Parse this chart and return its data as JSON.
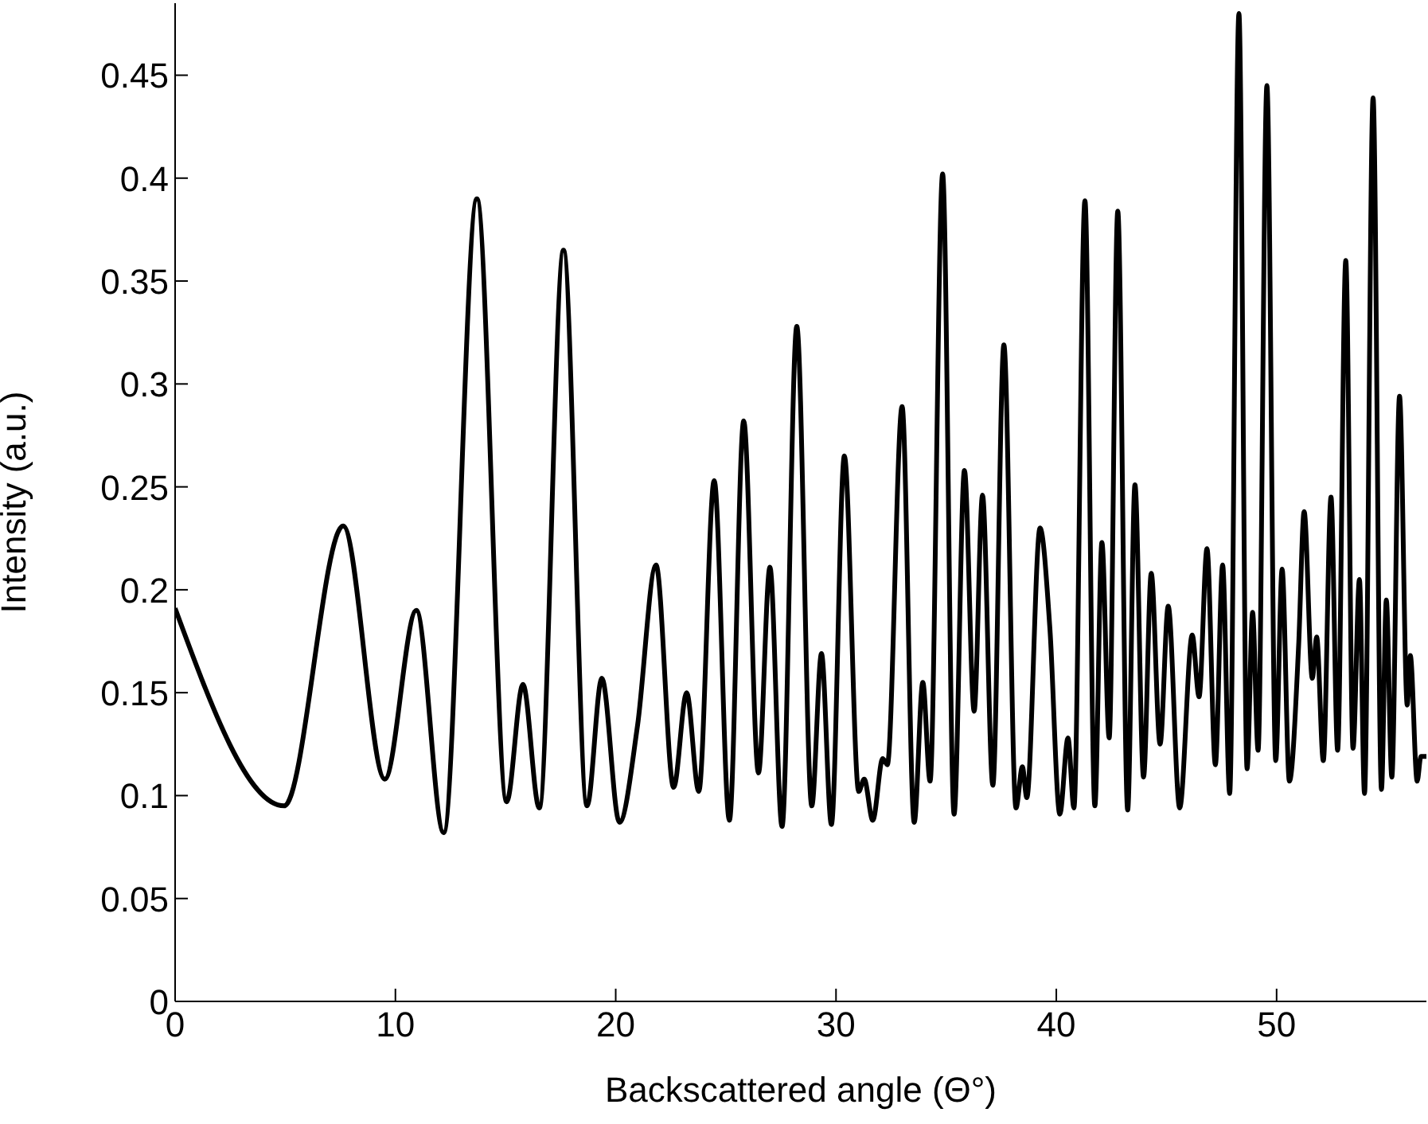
{
  "chart_data": {
    "type": "line",
    "xlabel": "Backscattered angle (Θ°)",
    "ylabel": "Intensity (a.u.)",
    "xlim": [
      0,
      56.8
    ],
    "ylim": [
      0,
      0.485
    ],
    "xticks": [
      0,
      10,
      20,
      30,
      40,
      50
    ],
    "yticks": [
      0,
      0.05,
      0.1,
      0.15,
      0.2,
      0.25,
      0.3,
      0.35,
      0.4,
      0.45
    ],
    "grid": false,
    "marker": "none",
    "line_style": "solid",
    "series": [
      {
        "color": "#000000",
        "x": [
          0,
          4.95,
          7.63,
          9.52,
          10.95,
          12.19,
          13.7,
          15.05,
          15.79,
          16.53,
          17.63,
          18.7,
          19.37,
          20.17,
          20.99,
          21.83,
          22.63,
          23.22,
          23.77,
          24.47,
          25.16,
          25.81,
          26.48,
          27.0,
          27.55,
          28.22,
          28.9,
          29.34,
          29.79,
          30.38,
          31.03,
          31.28,
          31.67,
          32.12,
          32.33,
          33.0,
          33.55,
          33.94,
          34.27,
          34.84,
          35.36,
          35.83,
          36.27,
          36.65,
          37.12,
          37.62,
          38.17,
          38.46,
          38.66,
          39.26,
          39.71,
          40.16,
          40.53,
          40.8,
          41.3,
          41.75,
          42.07,
          42.4,
          42.79,
          43.24,
          43.57,
          43.96,
          44.31,
          44.71,
          45.08,
          45.6,
          46.17,
          46.48,
          46.84,
          47.22,
          47.55,
          47.87,
          48.29,
          48.66,
          48.91,
          49.16,
          49.56,
          49.96,
          50.25,
          50.58,
          51.0,
          51.25,
          51.62,
          51.82,
          52.12,
          52.47,
          52.77,
          53.14,
          53.47,
          53.76,
          53.99,
          54.38,
          54.76,
          54.98,
          55.23,
          55.58,
          55.93,
          56.07,
          56.38,
          56.55,
          56.8
        ],
        "values": [
          0.191,
          0.095,
          0.231,
          0.108,
          0.19,
          0.082,
          0.39,
          0.097,
          0.154,
          0.094,
          0.365,
          0.095,
          0.157,
          0.087,
          0.134,
          0.212,
          0.104,
          0.15,
          0.102,
          0.253,
          0.088,
          0.282,
          0.111,
          0.211,
          0.085,
          0.328,
          0.095,
          0.169,
          0.086,
          0.265,
          0.102,
          0.108,
          0.088,
          0.118,
          0.115,
          0.289,
          0.087,
          0.155,
          0.107,
          0.402,
          0.091,
          0.258,
          0.141,
          0.246,
          0.105,
          0.319,
          0.094,
          0.114,
          0.099,
          0.23,
          0.181,
          0.091,
          0.128,
          0.094,
          0.389,
          0.095,
          0.223,
          0.128,
          0.384,
          0.093,
          0.251,
          0.109,
          0.208,
          0.125,
          0.192,
          0.094,
          0.178,
          0.148,
          0.22,
          0.115,
          0.212,
          0.101,
          0.48,
          0.113,
          0.189,
          0.122,
          0.445,
          0.117,
          0.21,
          0.107,
          0.173,
          0.238,
          0.157,
          0.177,
          0.117,
          0.245,
          0.122,
          0.36,
          0.123,
          0.205,
          0.101,
          0.439,
          0.103,
          0.195,
          0.109,
          0.294,
          0.144,
          0.168,
          0.107,
          0.119,
          0.119
        ]
      }
    ]
  }
}
